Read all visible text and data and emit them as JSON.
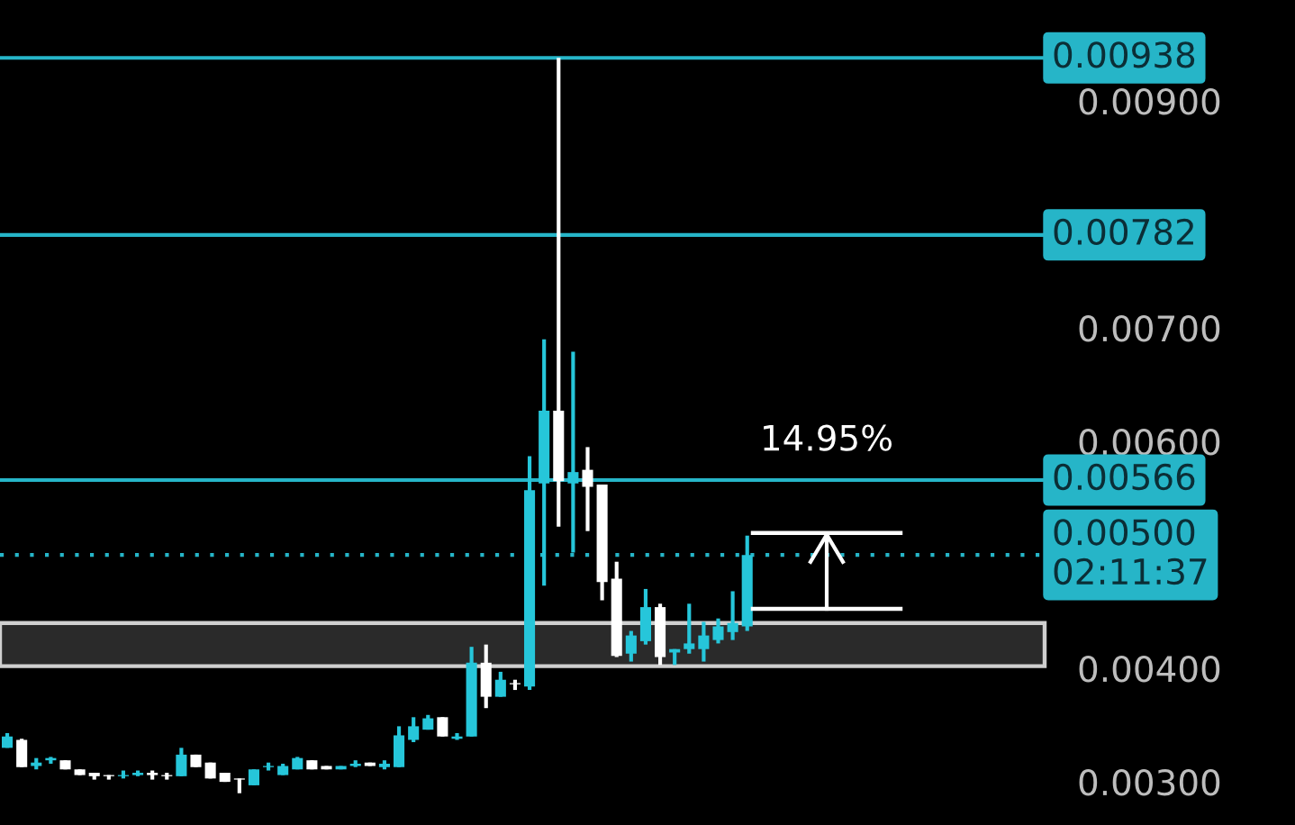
{
  "chart_data": {
    "type": "candlestick",
    "categories": [
      null,
      null,
      null,
      null,
      null,
      null,
      null,
      null,
      null,
      null,
      null,
      null,
      null,
      null,
      null,
      null,
      null,
      null,
      null,
      null,
      null,
      null,
      null,
      null,
      null,
      null,
      null,
      null,
      null,
      null,
      null,
      null,
      null,
      null,
      null,
      null,
      null,
      null,
      null,
      null,
      null,
      null,
      null,
      null,
      null,
      null,
      null,
      null,
      null,
      null,
      null,
      null,
      null,
      null,
      null,
      null,
      null,
      null,
      null,
      null,
      null,
      null,
      null,
      null,
      null,
      null,
      null,
      null,
      null,
      null,
      null,
      null
    ],
    "ohlc": [
      [
        0.0033,
        0.00343,
        0.0033,
        0.0034
      ],
      [
        0.00337,
        0.00338,
        0.00313,
        0.00313
      ],
      [
        0.00314,
        0.00321,
        0.00311,
        0.00317
      ],
      [
        0.00319,
        0.00322,
        0.00316,
        0.00321
      ],
      [
        0.00319,
        0.00319,
        0.00311,
        0.00311
      ],
      [
        0.00311,
        0.00311,
        0.00306,
        0.00306
      ],
      [
        0.00308,
        0.00308,
        0.00302,
        0.00305
      ],
      [
        0.00306,
        0.00306,
        0.00302,
        0.00305
      ],
      [
        0.00305,
        0.0031,
        0.00303,
        0.00306
      ],
      [
        0.00306,
        0.0031,
        0.00305,
        0.00308
      ],
      [
        0.00308,
        0.0031,
        0.00302,
        0.00306
      ],
      [
        0.00306,
        0.00308,
        0.00302,
        0.00305
      ],
      [
        0.00305,
        0.0033,
        0.00305,
        0.00324
      ],
      [
        0.00324,
        0.00324,
        0.00313,
        0.00313
      ],
      [
        0.00317,
        0.00317,
        0.00303,
        0.00303
      ],
      [
        0.00308,
        0.00308,
        0.003,
        0.003
      ],
      [
        0.00303,
        0.00303,
        0.0029,
        0.00302
      ],
      [
        0.00297,
        0.00311,
        0.00297,
        0.00311
      ],
      [
        0.00313,
        0.00317,
        0.0031,
        0.00314
      ],
      [
        0.00306,
        0.00316,
        0.00306,
        0.00314
      ],
      [
        0.00311,
        0.00322,
        0.00311,
        0.00321
      ],
      [
        0.00319,
        0.00319,
        0.00311,
        0.00311
      ],
      [
        0.00314,
        0.00314,
        0.00311,
        0.00311
      ],
      [
        0.00311,
        0.00314,
        0.00311,
        0.00314
      ],
      [
        0.00314,
        0.00319,
        0.00313,
        0.00316
      ],
      [
        0.00317,
        0.00317,
        0.00314,
        0.00314
      ],
      [
        0.00313,
        0.00319,
        0.00311,
        0.00316
      ],
      [
        0.00313,
        0.00349,
        0.00313,
        0.00341
      ],
      [
        0.00337,
        0.00357,
        0.00335,
        0.00349
      ],
      [
        0.00346,
        0.00359,
        0.00346,
        0.00356
      ],
      [
        0.00357,
        0.00357,
        0.0034,
        0.0034
      ],
      [
        0.00338,
        0.00343,
        0.00337,
        0.0034
      ],
      [
        0.0034,
        0.00419,
        0.0034,
        0.00405
      ],
      [
        0.00405,
        0.00421,
        0.00365,
        0.00375
      ],
      [
        0.00375,
        0.00397,
        0.00375,
        0.0039
      ],
      [
        0.00387,
        0.0039,
        0.00381,
        0.00386
      ],
      [
        0.00384,
        0.00587,
        0.00381,
        0.00557
      ],
      [
        0.00563,
        0.0069,
        0.00473,
        0.00627
      ],
      [
        0.00627,
        0.00938,
        0.00525,
        0.00565
      ],
      [
        0.00563,
        0.00679,
        0.00502,
        0.00573
      ],
      [
        0.00575,
        0.00595,
        0.00521,
        0.0056
      ],
      [
        0.00562,
        0.00562,
        0.0046,
        0.00476
      ],
      [
        0.00479,
        0.00494,
        0.0041,
        0.00411
      ],
      [
        0.00413,
        0.00433,
        0.00406,
        0.00429
      ],
      [
        0.00424,
        0.0047,
        0.00421,
        0.00454
      ],
      [
        0.00454,
        0.00457,
        0.00403,
        0.0041
      ],
      [
        0.00414,
        0.00417,
        0.00403,
        0.00417
      ],
      [
        0.00417,
        0.00457,
        0.00413,
        0.00422
      ],
      [
        0.00417,
        0.00441,
        0.00406,
        0.00429
      ],
      [
        0.00425,
        0.00444,
        0.00422,
        0.00437
      ],
      [
        0.00432,
        0.00468,
        0.00425,
        0.0044
      ],
      [
        0.00437,
        0.00517,
        0.00433,
        0.005
      ],
      null,
      null,
      null,
      null,
      null,
      null,
      null,
      null,
      null,
      null,
      null,
      null,
      null,
      null,
      null,
      null,
      null,
      null,
      null,
      null
    ],
    "colors": [
      "#26c6da",
      "#ffffff",
      "#26c6da",
      "#26c6da",
      "#ffffff",
      "#ffffff",
      "#ffffff",
      "#ffffff",
      "#26c6da",
      "#26c6da",
      "#ffffff",
      "#ffffff",
      "#26c6da",
      "#ffffff",
      "#ffffff",
      "#ffffff",
      "#ffffff",
      "#26c6da",
      "#26c6da",
      "#26c6da",
      "#26c6da",
      "#ffffff",
      "#ffffff",
      "#26c6da",
      "#26c6da",
      "#ffffff",
      "#26c6da",
      "#26c6da",
      "#26c6da",
      "#26c6da",
      "#ffffff",
      "#26c6da",
      "#26c6da",
      "#ffffff",
      "#26c6da",
      "#ffffff",
      "#26c6da",
      "#26c6da",
      "#ffffff",
      "#26c6da",
      "#ffffff",
      "#ffffff",
      "#ffffff",
      "#26c6da",
      "#26c6da",
      "#ffffff",
      "#26c6da",
      "#26c6da",
      "#26c6da",
      "#26c6da",
      "#26c6da",
      "#26c6da",
      null,
      null,
      null,
      null,
      null,
      null,
      null,
      null,
      null,
      null,
      null,
      null,
      null,
      null,
      null,
      null,
      null,
      null,
      null,
      null
    ],
    "ylim": [
      0.00262,
      0.00989
    ],
    "yticks": [
      {
        "value": 0.003,
        "label": "0.00300"
      },
      {
        "value": 0.004,
        "label": "0.00400"
      },
      {
        "value": 0.006,
        "label": "0.00600"
      },
      {
        "value": 0.007,
        "label": "0.00700"
      },
      {
        "value": 0.009,
        "label": "0.00900"
      }
    ],
    "ref_lines": [
      {
        "axis": "y",
        "value": 0.00938,
        "label": "0.00938",
        "color": "#26b5c8",
        "line_style": "solid"
      },
      {
        "axis": "y",
        "value": 0.00782,
        "label": "0.00782",
        "color": "#26b5c8",
        "line_style": "solid"
      },
      {
        "axis": "y",
        "value": 0.00566,
        "label": "0.00566",
        "color": "#26b5c8",
        "line_style": "solid"
      },
      {
        "axis": "y",
        "value": 0.005,
        "label": "0.00500\n02:11:37",
        "color": "#26b5c8",
        "line_style": "dotted"
      }
    ],
    "bands": [
      {
        "axis": "y",
        "from": 0.00402,
        "to": 0.0044,
        "color": "#2a2a2a"
      }
    ],
    "annotations": [
      "14.95%"
    ],
    "grid": false
  }
}
